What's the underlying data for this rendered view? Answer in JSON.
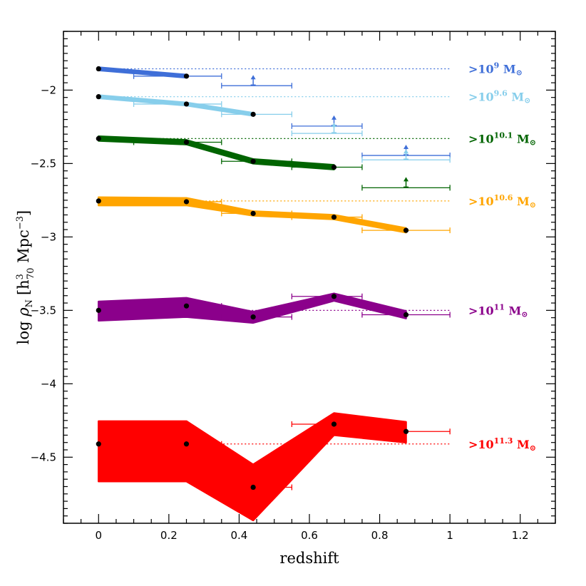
{
  "chart_data": {
    "type": "line",
    "title": "",
    "xlabel": "redshift",
    "ylabel_parts": {
      "prefix": "log ",
      "rho": "ρ",
      "rho_sub": "N",
      "bracket_open": "[",
      "h": "h",
      "h_sup": "3",
      "h_sub": "70",
      "unit": " Mpc",
      "unit_sup": "−3",
      "bracket_close": "]"
    },
    "xlim": [
      -0.1,
      1.3
    ],
    "ylim": [
      -4.95,
      -1.6
    ],
    "x_ticks": [
      0,
      0.2,
      0.4,
      0.6,
      0.8,
      1,
      1.2
    ],
    "x_tick_labels": [
      "0",
      "0.2",
      "0.4",
      "0.6",
      "0.8",
      "1",
      "1.2"
    ],
    "y_ticks": [
      -2,
      -2.5,
      -3,
      -3.5,
      -4,
      -4.5
    ],
    "y_tick_labels": [
      "−2",
      "−2.5",
      "−3",
      "−3.5",
      "−4",
      "−4.5"
    ],
    "series": [
      {
        "name": ">10^9 Msun",
        "label_base": ">10",
        "label_exp": "9",
        "label_unit": " M",
        "label_sun": "⊙",
        "color": "#3f6fd8",
        "x": [
          0.0,
          0.25
        ],
        "y": [
          -1.855,
          -1.905
        ],
        "band_upper": [
          -1.845,
          -1.895
        ],
        "band_lower": [
          -1.865,
          -1.915
        ],
        "xerr_low": [
          0.0,
          0.15
        ],
        "xerr_high": [
          0.0,
          0.1
        ],
        "reference": -1.855,
        "lower_limits": [
          {
            "x": 0.44,
            "y": -1.97,
            "xlow": 0.35,
            "xhigh": 0.55
          },
          {
            "x": 0.67,
            "y": -2.245,
            "xlow": 0.55,
            "xhigh": 0.75
          },
          {
            "x": 0.875,
            "y": -2.445,
            "xlow": 0.75,
            "xhigh": 1.0
          }
        ]
      },
      {
        "name": ">10^9.6 Msun",
        "label_base": ">10",
        "label_exp": "9.6",
        "label_unit": " M",
        "label_sun": "⊙",
        "color": "#87ceeb",
        "x": [
          0.0,
          0.25,
          0.44
        ],
        "y": [
          -2.045,
          -2.095,
          -2.165
        ],
        "band_upper": [
          -2.035,
          -2.085,
          -2.155
        ],
        "band_lower": [
          -2.055,
          -2.105,
          -2.175
        ],
        "xerr_low": [
          0.0,
          0.15,
          0.09
        ],
        "xerr_high": [
          0.0,
          0.1,
          0.11
        ],
        "reference": -2.045,
        "lower_limits": [
          {
            "x": 0.67,
            "y": -2.295,
            "xlow": 0.55,
            "xhigh": 0.75
          },
          {
            "x": 0.875,
            "y": -2.475,
            "xlow": 0.75,
            "xhigh": 1.0
          }
        ]
      },
      {
        "name": ">10^10.1 Msun",
        "label_base": ">10",
        "label_exp": "10.1",
        "label_unit": " M",
        "label_sun": "⊙",
        "color": "#006400",
        "x": [
          0.0,
          0.25,
          0.44,
          0.67
        ],
        "y": [
          -2.33,
          -2.355,
          -2.485,
          -2.525
        ],
        "band_upper": [
          -2.315,
          -2.34,
          -2.47,
          -2.51
        ],
        "band_lower": [
          -2.345,
          -2.37,
          -2.5,
          -2.54
        ],
        "xerr_low": [
          0.0,
          0.15,
          0.09,
          0.12
        ],
        "xerr_high": [
          0.0,
          0.1,
          0.11,
          0.08
        ],
        "reference": -2.33,
        "lower_limits": [
          {
            "x": 0.875,
            "y": -2.665,
            "xlow": 0.75,
            "xhigh": 1.0
          }
        ]
      },
      {
        "name": ">10^10.6 Msun",
        "label_base": ">10",
        "label_exp": "10.6",
        "label_unit": " M",
        "label_sun": "⊙",
        "color": "#ffa500",
        "x": [
          0.0,
          0.25,
          0.44,
          0.67,
          0.875
        ],
        "y": [
          -2.755,
          -2.76,
          -2.84,
          -2.865,
          -2.955
        ],
        "band_upper": [
          -2.73,
          -2.735,
          -2.825,
          -2.85,
          -2.94
        ],
        "band_lower": [
          -2.785,
          -2.785,
          -2.855,
          -2.88,
          -2.97
        ],
        "xerr_low": [
          0.0,
          0.15,
          0.09,
          0.12,
          0.125
        ],
        "xerr_high": [
          0.0,
          0.1,
          0.11,
          0.08,
          0.125
        ],
        "reference": -2.755,
        "lower_limits": []
      },
      {
        "name": ">10^11 Msun",
        "label_base": ">10",
        "label_exp": "11",
        "label_unit": " M",
        "label_sun": "⊙",
        "color": "#8b008b",
        "x": [
          0.0,
          0.25,
          0.44,
          0.67,
          0.875
        ],
        "y": [
          -3.5,
          -3.47,
          -3.545,
          -3.405,
          -3.53
        ],
        "band_upper": [
          -3.44,
          -3.415,
          -3.51,
          -3.385,
          -3.505
        ],
        "band_lower": [
          -3.57,
          -3.545,
          -3.585,
          -3.435,
          -3.555
        ],
        "xerr_low": [
          0.0,
          0.15,
          0.09,
          0.12,
          0.125
        ],
        "xerr_high": [
          0.0,
          0.1,
          0.11,
          0.08,
          0.125
        ],
        "reference": -3.5,
        "lower_limits": []
      },
      {
        "name": ">10^11.3 Msun",
        "label_base": ">10",
        "label_exp": "11.3",
        "label_unit": " M",
        "label_sun": "⊙",
        "color": "#ff0000",
        "x": [
          0.0,
          0.25,
          0.44,
          0.67,
          0.875
        ],
        "y": [
          -4.41,
          -4.41,
          -4.705,
          -4.275,
          -4.325
        ],
        "band_upper": [
          -4.255,
          -4.255,
          -4.55,
          -4.2,
          -4.26
        ],
        "band_lower": [
          -4.665,
          -4.665,
          -4.93,
          -4.35,
          -4.4
        ],
        "xerr_low": [
          0.0,
          0.15,
          0.09,
          0.12,
          0.125
        ],
        "xerr_high": [
          0.0,
          0.1,
          0.11,
          0.08,
          0.125
        ],
        "reference": -4.41,
        "lower_limits": []
      }
    ]
  }
}
